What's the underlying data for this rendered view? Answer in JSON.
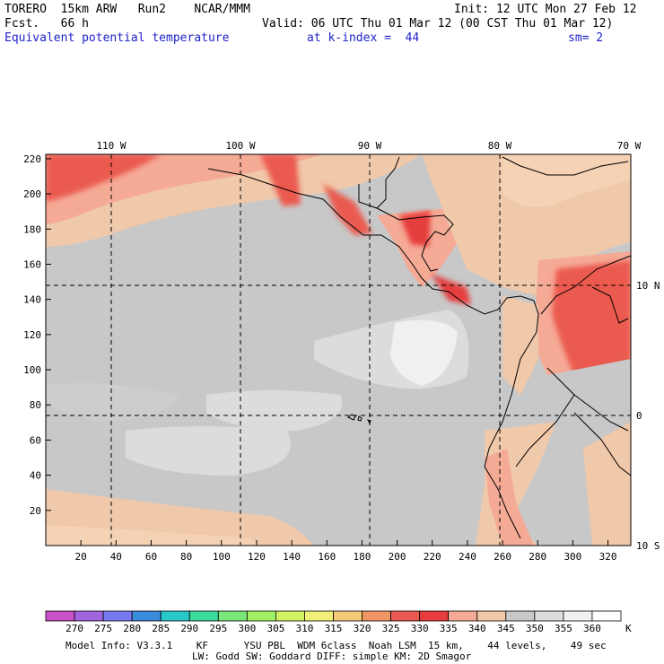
{
  "header": {
    "model": "TORERO  15km ARW   Run2    NCAR/MMM",
    "init": "Init: 12 UTC Mon 27 Feb 12",
    "fcst": "Fcst.   66 h",
    "valid": "Valid: 06 UTC Thu 01 Mar 12 (00 CST Thu 01 Mar 12)",
    "field": "Equivalent potential temperature",
    "level": "at k-index =  44",
    "smooth": "sm= 2"
  },
  "map": {
    "x_ticks": [
      "20",
      "40",
      "60",
      "80",
      "100",
      "120",
      "140",
      "160",
      "180",
      "200",
      "220",
      "240",
      "260",
      "280",
      "300",
      "320"
    ],
    "y_ticks": [
      "20",
      "40",
      "60",
      "80",
      "100",
      "120",
      "140",
      "160",
      "180",
      "200",
      "220"
    ],
    "lon_labels": [
      "110 W",
      "100 W",
      "90 W",
      "80 W",
      "70 W"
    ],
    "lat_labels": [
      "10 N",
      "0",
      "10 S"
    ]
  },
  "colorbar": {
    "values": [
      "270",
      "275",
      "280",
      "285",
      "290",
      "295",
      "300",
      "305",
      "310",
      "315",
      "320",
      "325",
      "330",
      "335",
      "340",
      "345",
      "350",
      "355",
      "360"
    ],
    "unit": "K",
    "colors": [
      "#c850c8",
      "#a064dc",
      "#7878f0",
      "#3c8cdc",
      "#28c8c8",
      "#3cdca0",
      "#78e678",
      "#a0f064",
      "#d2f064",
      "#f0f078",
      "#f5c878",
      "#f09664",
      "#eb5a50",
      "#e63c3c",
      "#f5aa96",
      "#f0c8aa",
      "#c8c8c8",
      "#dcdcdc",
      "#f0f0f0",
      "#ffffff"
    ]
  },
  "footer": {
    "line1": "Model Info: V3.3.1    KF      YSU PBL  WDM 6class  Noah LSM  15 km,    44 levels,    49 sec",
    "line2": "LW: Godd SW: Goddard DIFF: simple KM: 2D Smagor"
  }
}
